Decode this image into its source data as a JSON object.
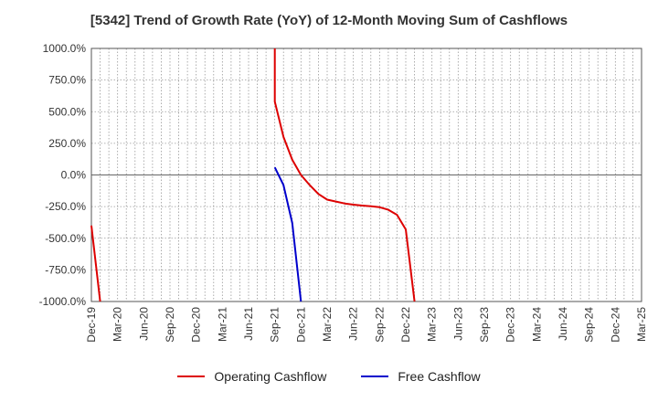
{
  "chart_data": {
    "type": "line",
    "title": "[5342]  Trend of Growth Rate (YoY) of 12-Month Moving Sum of Cashflows",
    "xlabel": "",
    "ylabel": "",
    "x_tick_labels": [
      "Dec-19",
      "Mar-20",
      "Jun-20",
      "Sep-20",
      "Dec-20",
      "Mar-21",
      "Jun-21",
      "Sep-21",
      "Dec-21",
      "Mar-22",
      "Jun-22",
      "Sep-22",
      "Dec-22",
      "Mar-23",
      "Jun-23",
      "Sep-23",
      "Dec-23",
      "Mar-24",
      "Jun-24",
      "Sep-24",
      "Dec-24",
      "Mar-25"
    ],
    "y_ticks": [
      1000,
      750,
      500,
      250,
      0,
      -250,
      -500,
      -750,
      -1000
    ],
    "y_tick_labels": [
      "1000.0%",
      "750.0%",
      "500.0%",
      "250.0%",
      "0.0%",
      "-250.0%",
      "-500.0%",
      "-750.0%",
      "-1000.0%"
    ],
    "ylim": [
      -1000,
      1000
    ],
    "grid": true,
    "legend_position": "bottom",
    "series": [
      {
        "name": "Operating Cashflow",
        "color": "#dd0000",
        "points": [
          [
            "Dec-19",
            -400
          ],
          [
            "Jan-20",
            -1000
          ]
        ],
        "segment2": [
          [
            "Sep-21",
            1000
          ],
          [
            "Sep-21",
            580
          ],
          [
            "Oct-21",
            300
          ],
          [
            "Nov-21",
            120
          ],
          [
            "Dec-21",
            0
          ],
          [
            "Jan-22",
            -80
          ],
          [
            "Feb-22",
            -150
          ],
          [
            "Mar-22",
            -195
          ],
          [
            "Apr-22",
            -210
          ],
          [
            "May-22",
            -225
          ],
          [
            "Jun-22",
            -235
          ],
          [
            "Jul-22",
            -242
          ],
          [
            "Aug-22",
            -248
          ],
          [
            "Sep-22",
            -255
          ],
          [
            "Oct-22",
            -275
          ],
          [
            "Nov-22",
            -315
          ],
          [
            "Dec-22",
            -430
          ],
          [
            "Jan-23",
            -1000
          ]
        ]
      },
      {
        "name": "Free Cashflow",
        "color": "#0000cc",
        "points": [
          [
            "Sep-21",
            60
          ],
          [
            "Oct-21",
            -80
          ],
          [
            "Nov-21",
            -380
          ],
          [
            "Dec-21",
            -1000
          ]
        ]
      }
    ]
  },
  "legend": {
    "operating": "Operating Cashflow",
    "free": "Free Cashflow"
  }
}
